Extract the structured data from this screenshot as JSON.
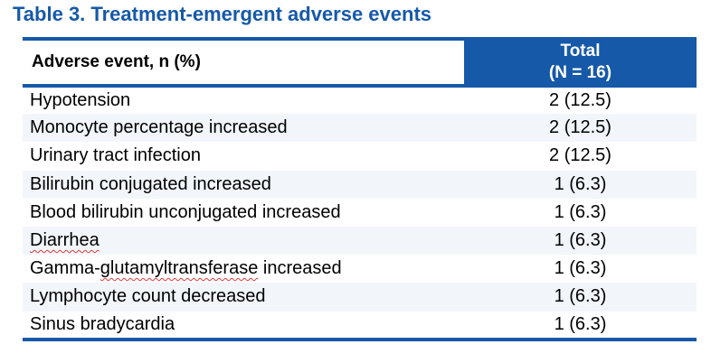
{
  "title": "Table 3. Treatment-emergent adverse events",
  "colors": {
    "accent_blue": "#1659A9",
    "header_text_on_blue": "#FFFFFF",
    "alt_row_bg": "#F2F6FB",
    "body_text": "#000000",
    "spellcheck_underline": "#E03A3A"
  },
  "table": {
    "columns": {
      "event_header": "Adverse event, n (%)",
      "total_header_line1": "Total",
      "total_header_line2": "(N = 16)"
    },
    "rows": [
      {
        "parts": [
          {
            "text": "Hypotension",
            "misspelled": false
          }
        ],
        "value": "2 (12.5)"
      },
      {
        "parts": [
          {
            "text": "Monocyte percentage increased",
            "misspelled": false
          }
        ],
        "value": "2 (12.5)"
      },
      {
        "parts": [
          {
            "text": "Urinary tract infection",
            "misspelled": false
          }
        ],
        "value": "2 (12.5)"
      },
      {
        "parts": [
          {
            "text": "Bilirubin conjugated increased",
            "misspelled": false
          }
        ],
        "value": "1 (6.3)"
      },
      {
        "parts": [
          {
            "text": "Blood bilirubin unconjugated increased",
            "misspelled": false
          }
        ],
        "value": "1 (6.3)"
      },
      {
        "parts": [
          {
            "text": "Diarrhea",
            "misspelled": true
          }
        ],
        "value": "1 (6.3)"
      },
      {
        "parts": [
          {
            "text": "Gamma-",
            "misspelled": false
          },
          {
            "text": "glutamyltransferase",
            "misspelled": true
          },
          {
            "text": " increased",
            "misspelled": false
          }
        ],
        "value": "1 (6.3)"
      },
      {
        "parts": [
          {
            "text": "Lymphocyte count decreased",
            "misspelled": false
          }
        ],
        "value": "1 (6.3)"
      },
      {
        "parts": [
          {
            "text": "Sinus bradycardia",
            "misspelled": false
          }
        ],
        "value": "1 (6.3)"
      }
    ]
  },
  "chart_data": {
    "type": "table",
    "title": "Table 3. Treatment-emergent adverse events",
    "columns": [
      "Adverse event, n (%)",
      "Total (N = 16)"
    ],
    "rows": [
      [
        "Hypotension",
        "2 (12.5)"
      ],
      [
        "Monocyte percentage increased",
        "2 (12.5)"
      ],
      [
        "Urinary tract infection",
        "2 (12.5)"
      ],
      [
        "Bilirubin conjugated increased",
        "1 (6.3)"
      ],
      [
        "Blood bilirubin unconjugated increased",
        "1 (6.3)"
      ],
      [
        "Diarrhea",
        "1 (6.3)"
      ],
      [
        "Gamma-glutamyltransferase increased",
        "1 (6.3)"
      ],
      [
        "Lymphocyte count decreased",
        "1 (6.3)"
      ],
      [
        "Sinus bradycardia",
        "1 (6.3)"
      ]
    ]
  }
}
